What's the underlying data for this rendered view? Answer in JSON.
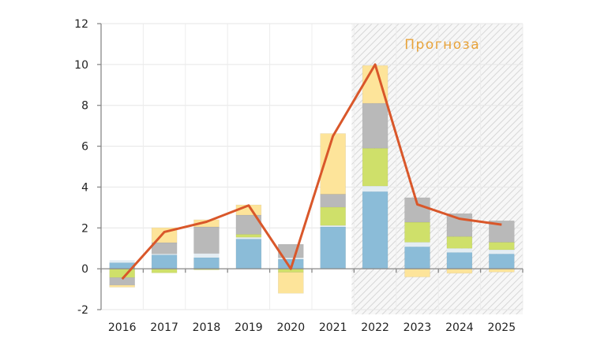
{
  "chart_data": {
    "type": "bar",
    "stacked": true,
    "title": "",
    "xlabel": "",
    "ylabel": "",
    "ylim": [
      -2,
      12
    ],
    "yticks": [
      -2,
      0,
      2,
      4,
      6,
      8,
      10,
      12
    ],
    "grid": true,
    "categories": [
      "2016",
      "2017",
      "2018",
      "2019",
      "2020",
      "2021",
      "2022",
      "2023",
      "2024",
      "2025"
    ],
    "forecast_label": "Прогноза",
    "forecast_from": "2022",
    "series": [
      {
        "name": "blue",
        "color": "#8bbcd8",
        "values": [
          0.3,
          0.68,
          0.55,
          1.46,
          0.47,
          2.05,
          3.78,
          1.08,
          0.8,
          0.73
        ]
      },
      {
        "name": "light",
        "color": "#e4edf3",
        "values": [
          0.12,
          0.05,
          0.2,
          0.08,
          0.07,
          0.07,
          0.27,
          0.22,
          0.2,
          0.2
        ]
      },
      {
        "name": "green",
        "color": "#cfe06a",
        "values": [
          -0.43,
          -0.2,
          -0.05,
          0.15,
          -0.17,
          0.9,
          1.85,
          0.98,
          0.58,
          0.37
        ]
      },
      {
        "name": "gray",
        "color": "#b9b9b9",
        "values": [
          -0.37,
          0.55,
          1.3,
          0.94,
          0.66,
          0.63,
          2.2,
          1.2,
          1.12,
          1.05
        ]
      },
      {
        "name": "yellow",
        "color": "#fde49a",
        "values": [
          -0.1,
          0.73,
          0.35,
          0.5,
          -1.03,
          2.97,
          1.85,
          -0.4,
          -0.22,
          -0.16
        ]
      }
    ],
    "line": {
      "name": "total",
      "color": "#d9572a",
      "values": [
        -0.5,
        1.8,
        2.3,
        3.1,
        0.0,
        6.5,
        10.0,
        3.15,
        2.45,
        2.16
      ]
    }
  }
}
